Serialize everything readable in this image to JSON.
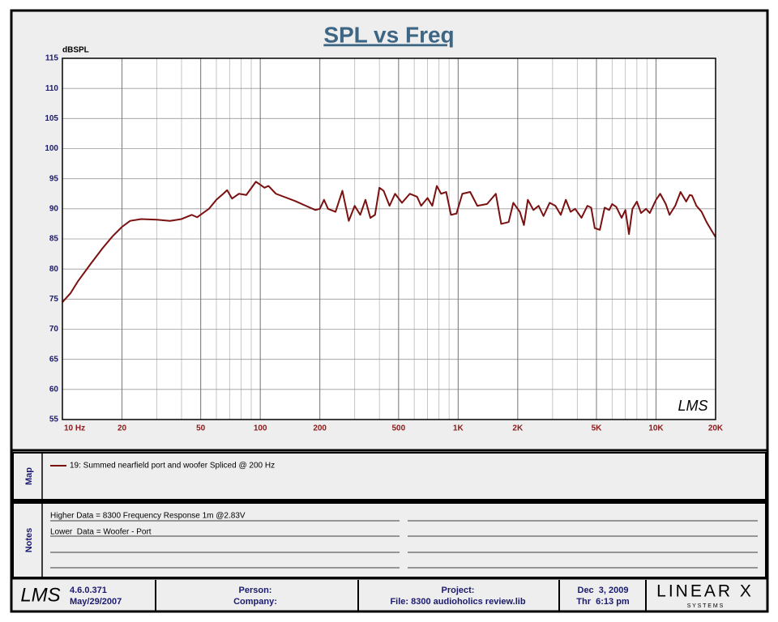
{
  "chart_data": {
    "type": "line",
    "title": "SPL vs Freq",
    "y_label": "dBSPL",
    "xscale": "log",
    "grid": true,
    "minor_grid": true,
    "xlim": [
      10,
      20000
    ],
    "ylim": [
      55,
      115
    ],
    "xticks": [
      {
        "value": 10,
        "label": "10 Hz"
      },
      20,
      50,
      100,
      200,
      500,
      {
        "value": 1000,
        "label": "1K"
      },
      {
        "value": 2000,
        "label": "2K"
      },
      {
        "value": 5000,
        "label": "5K"
      },
      {
        "value": 10000,
        "label": "10K"
      },
      {
        "value": 20000,
        "label": "20K"
      }
    ],
    "yticks": [
      55,
      60,
      65,
      70,
      75,
      80,
      85,
      90,
      95,
      100,
      105,
      110,
      115
    ],
    "x": [
      10,
      11,
      12,
      14,
      16,
      18,
      20,
      22,
      25,
      30,
      35,
      40,
      45,
      48,
      55,
      60,
      65,
      68,
      72,
      78,
      85,
      95,
      100,
      105,
      110,
      120,
      150,
      170,
      190,
      200,
      210,
      220,
      240,
      260,
      280,
      300,
      320,
      340,
      360,
      380,
      400,
      420,
      450,
      480,
      520,
      570,
      620,
      650,
      700,
      740,
      780,
      820,
      870,
      920,
      980,
      1050,
      1150,
      1250,
      1400,
      1550,
      1650,
      1800,
      1900,
      2050,
      2150,
      2250,
      2400,
      2550,
      2700,
      2900,
      3100,
      3300,
      3500,
      3700,
      3900,
      4200,
      4500,
      4700,
      4900,
      5200,
      5500,
      5800,
      6000,
      6300,
      6700,
      7000,
      7300,
      7600,
      8000,
      8400,
      8900,
      9300,
      10000,
      10500,
      11200,
      11700,
      12500,
      13300,
      14200,
      14800,
      15200,
      16000,
      17000,
      18000,
      19000,
      20000
    ],
    "series": [
      {
        "name": "19: Summed nearfield port and woofer Spliced @ 200 Hz",
        "color": "#7a1010",
        "values": [
          74.5,
          76,
          78,
          81,
          83.5,
          85.5,
          87,
          88,
          88.3,
          88.2,
          88,
          88.3,
          89,
          88.6,
          90,
          91.5,
          92.5,
          93.1,
          91.7,
          92.5,
          92.3,
          94.5,
          94,
          93.5,
          93.8,
          92.5,
          91.3,
          90.5,
          89.8,
          90,
          91.5,
          90,
          89.5,
          93,
          88,
          90.5,
          89,
          91.5,
          88.5,
          89,
          93.5,
          93,
          90.5,
          92.5,
          91,
          92.5,
          92,
          90.5,
          91.8,
          90.5,
          93.8,
          92.5,
          92.8,
          89,
          89.2,
          92.5,
          92.8,
          90.5,
          90.8,
          92.5,
          87.5,
          87.8,
          91,
          89.5,
          87.3,
          91.5,
          89.8,
          90.5,
          88.8,
          91,
          90.5,
          89,
          91.5,
          89.5,
          90,
          88.5,
          90.5,
          90.2,
          86.8,
          86.5,
          90.2,
          89.8,
          90.8,
          90.3,
          88.5,
          89.8,
          85.8,
          90,
          91.2,
          89.3,
          90,
          89.3,
          91.5,
          92.5,
          90.8,
          89,
          90.5,
          92.8,
          91.2,
          92.3,
          92.2,
          90.5,
          89.5,
          87.8,
          86.5,
          85.3
        ]
      }
    ],
    "watermark": "LMS"
  },
  "map": {
    "label": "Map"
  },
  "notes": {
    "label": "Notes",
    "lines": [
      "Higher Data = 8300 Frequency Response 1m @2.83V",
      "Lower  Data = Woofer - Port"
    ]
  },
  "footer": {
    "logo": "LMS",
    "version": "4.6.0.371",
    "build_date": "May/29/2007",
    "person": "Person:",
    "company": "Company:",
    "project": "Project:",
    "file": "File: 8300 audioholics review.lib",
    "date": "Dec  3, 2009",
    "time": "Thr  6:13 pm",
    "brand": "LINEAR X",
    "brand_sub": "S Y S T E M S"
  }
}
